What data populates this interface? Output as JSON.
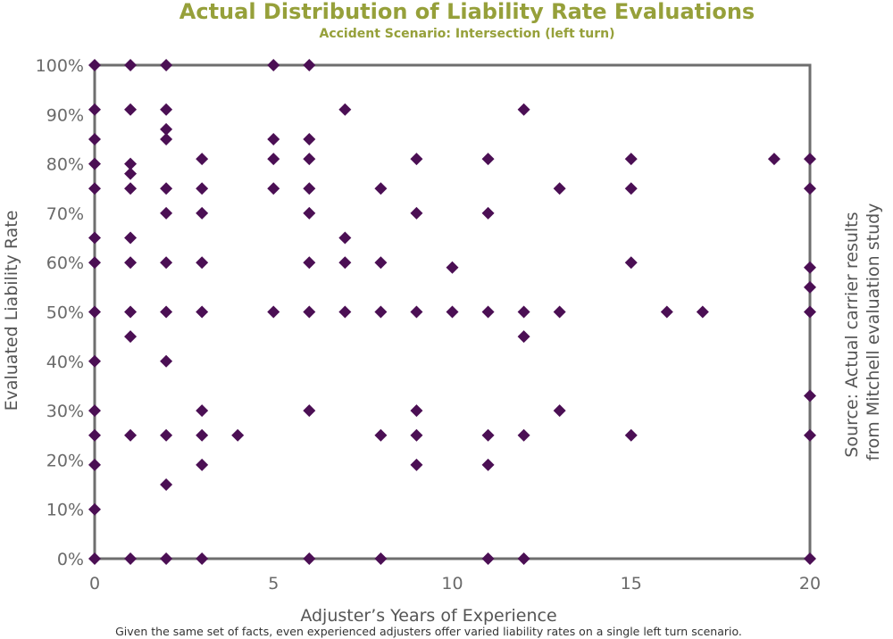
{
  "chart_data": {
    "type": "scatter",
    "title": "Actual Distribution of Liability Rate Evaluations",
    "subtitle": "Accident Scenario: Intersection (left turn)",
    "xlabel": "Adjuster’s Years of Experience",
    "ylabel": "Evaluated Liability Rate",
    "source": "Source: Actual carrier results from Mitchell evaluation study",
    "source_lines": [
      "Source: Actual carrier results",
      "from Mitchell evaluation study"
    ],
    "caption": "Given the same set of facts, even experienced adjusters offer varied liability rates on a single left turn scenario.",
    "xlim": [
      0,
      20
    ],
    "ylim": [
      0,
      100
    ],
    "x_ticks": [
      "0",
      "5",
      "10",
      "15",
      "20"
    ],
    "y_ticks": [
      "0%",
      "10%",
      "20%",
      "30%",
      "40%",
      "50%",
      "60%",
      "70%",
      "80%",
      "90%",
      "100%"
    ],
    "grid": false,
    "marker": "diamond",
    "color": "#4b0f54",
    "points": [
      [
        0,
        100
      ],
      [
        0,
        91
      ],
      [
        0,
        85
      ],
      [
        0,
        80
      ],
      [
        0,
        75
      ],
      [
        0,
        65
      ],
      [
        0,
        60
      ],
      [
        0,
        50
      ],
      [
        0,
        40
      ],
      [
        0,
        30
      ],
      [
        0,
        25
      ],
      [
        0,
        19
      ],
      [
        0,
        10
      ],
      [
        0,
        0
      ],
      [
        1,
        100
      ],
      [
        1,
        91
      ],
      [
        1,
        80
      ],
      [
        1,
        78
      ],
      [
        1,
        75
      ],
      [
        1,
        65
      ],
      [
        1,
        60
      ],
      [
        1,
        50
      ],
      [
        1,
        45
      ],
      [
        1,
        25
      ],
      [
        1,
        0
      ],
      [
        2,
        100
      ],
      [
        2,
        91
      ],
      [
        2,
        87
      ],
      [
        2,
        85
      ],
      [
        2,
        75
      ],
      [
        2,
        70
      ],
      [
        2,
        60
      ],
      [
        2,
        50
      ],
      [
        2,
        40
      ],
      [
        2,
        25
      ],
      [
        2,
        15
      ],
      [
        2,
        0
      ],
      [
        3,
        81
      ],
      [
        3,
        75
      ],
      [
        3,
        70
      ],
      [
        3,
        60
      ],
      [
        3,
        50
      ],
      [
        3,
        30
      ],
      [
        3,
        25
      ],
      [
        3,
        19
      ],
      [
        3,
        0
      ],
      [
        4,
        25
      ],
      [
        5,
        100
      ],
      [
        5,
        85
      ],
      [
        5,
        81
      ],
      [
        5,
        75
      ],
      [
        5,
        50
      ],
      [
        6,
        100
      ],
      [
        6,
        85
      ],
      [
        6,
        81
      ],
      [
        6,
        75
      ],
      [
        6,
        70
      ],
      [
        6,
        60
      ],
      [
        6,
        50
      ],
      [
        6,
        30
      ],
      [
        6,
        0
      ],
      [
        7,
        91
      ],
      [
        7,
        65
      ],
      [
        7,
        60
      ],
      [
        7,
        50
      ],
      [
        8,
        75
      ],
      [
        8,
        60
      ],
      [
        8,
        50
      ],
      [
        8,
        25
      ],
      [
        8,
        0
      ],
      [
        9,
        81
      ],
      [
        9,
        70
      ],
      [
        9,
        50
      ],
      [
        9,
        30
      ],
      [
        9,
        25
      ],
      [
        9,
        19
      ],
      [
        10,
        59
      ],
      [
        10,
        50
      ],
      [
        11,
        81
      ],
      [
        11,
        70
      ],
      [
        11,
        50
      ],
      [
        11,
        25
      ],
      [
        11,
        19
      ],
      [
        11,
        0
      ],
      [
        12,
        91
      ],
      [
        12,
        50
      ],
      [
        12,
        45
      ],
      [
        12,
        25
      ],
      [
        12,
        0
      ],
      [
        13,
        75
      ],
      [
        13,
        50
      ],
      [
        13,
        30
      ],
      [
        15,
        81
      ],
      [
        15,
        75
      ],
      [
        15,
        60
      ],
      [
        15,
        25
      ],
      [
        16,
        50
      ],
      [
        17,
        50
      ],
      [
        19,
        81
      ],
      [
        20,
        81
      ],
      [
        20,
        75
      ],
      [
        20,
        59
      ],
      [
        20,
        55
      ],
      [
        20,
        50
      ],
      [
        20,
        33
      ],
      [
        20,
        25
      ],
      [
        20,
        0
      ]
    ]
  }
}
